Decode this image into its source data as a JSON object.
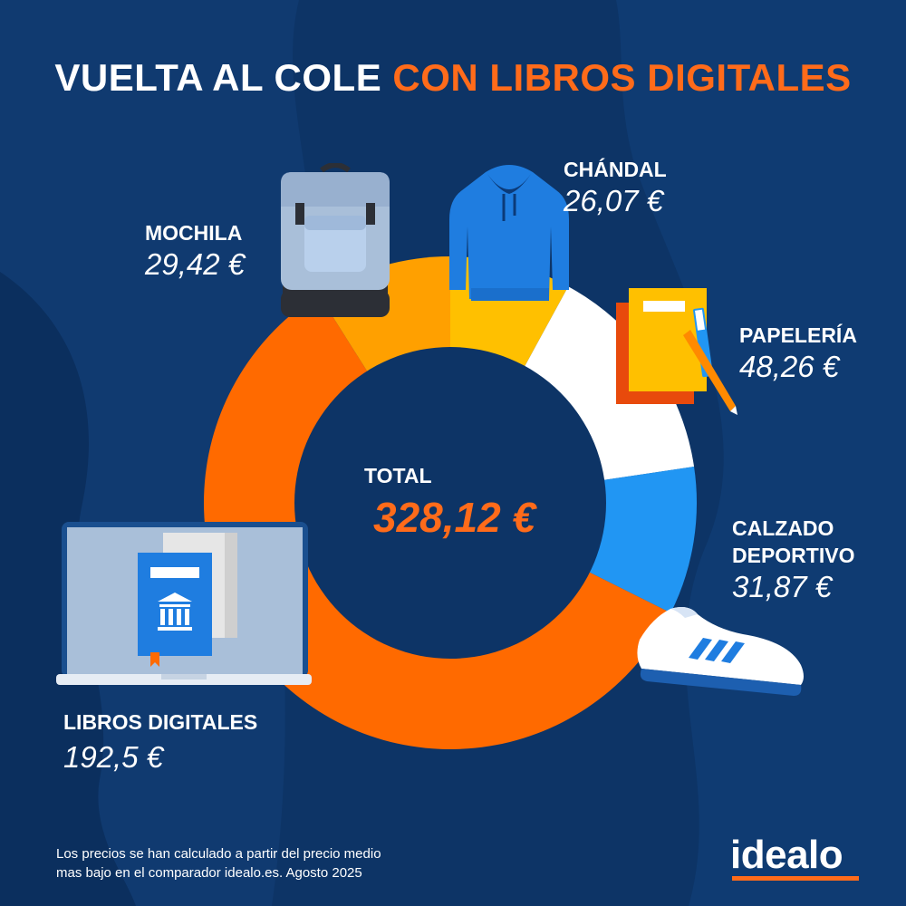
{
  "title": {
    "part1": "VUELTA AL COLE",
    "part2": "CON LIBROS DIGITALES"
  },
  "chart_data": {
    "type": "pie",
    "title": "VUELTA AL COLE CON LIBROS DIGITALES",
    "categories": [
      "MOCHILA",
      "CHÁNDAL",
      "PAPELERÍA",
      "CALZADO DEPORTIVO",
      "LIBROS DIGITALES"
    ],
    "values": [
      29.42,
      26.07,
      48.26,
      31.87,
      192.5
    ],
    "value_labels": [
      "29,42 €",
      "26,07 €",
      "48,26 €",
      "31,87 €",
      "192,5 €"
    ],
    "colors": [
      "#ffa000",
      "#ffc000",
      "#ffffff",
      "#2196f3",
      "#ff6a00"
    ],
    "total_label": "TOTAL",
    "total_value": "328,12 €",
    "style": "donut"
  },
  "labels": {
    "mochila": {
      "name": "MOCHILA",
      "value": "29,42 €"
    },
    "chandal": {
      "name": "CHÁNDAL",
      "value": "26,07 €"
    },
    "papeleria": {
      "name": "PAPELERÍA",
      "value": "48,26 €"
    },
    "calzado": {
      "name_line1": "CALZADO",
      "name_line2": "DEPORTIVO",
      "value": "31,87 €"
    },
    "libros": {
      "name": "LIBROS DIGITALES",
      "value": "192,5 €"
    }
  },
  "footnote": {
    "line1": "Los precios se han calculado a partir del precio medio",
    "line2": "mas bajo en el comparador idealo.es. Agosto 2025"
  },
  "logo": {
    "text": "idealo"
  },
  "icons": [
    "backpack-icon",
    "hoodie-icon",
    "notebooks-icon",
    "sneaker-icon",
    "laptop-ebook-icon"
  ],
  "colors": {
    "background": "#0d3466",
    "accent": "#ff6b1a"
  }
}
